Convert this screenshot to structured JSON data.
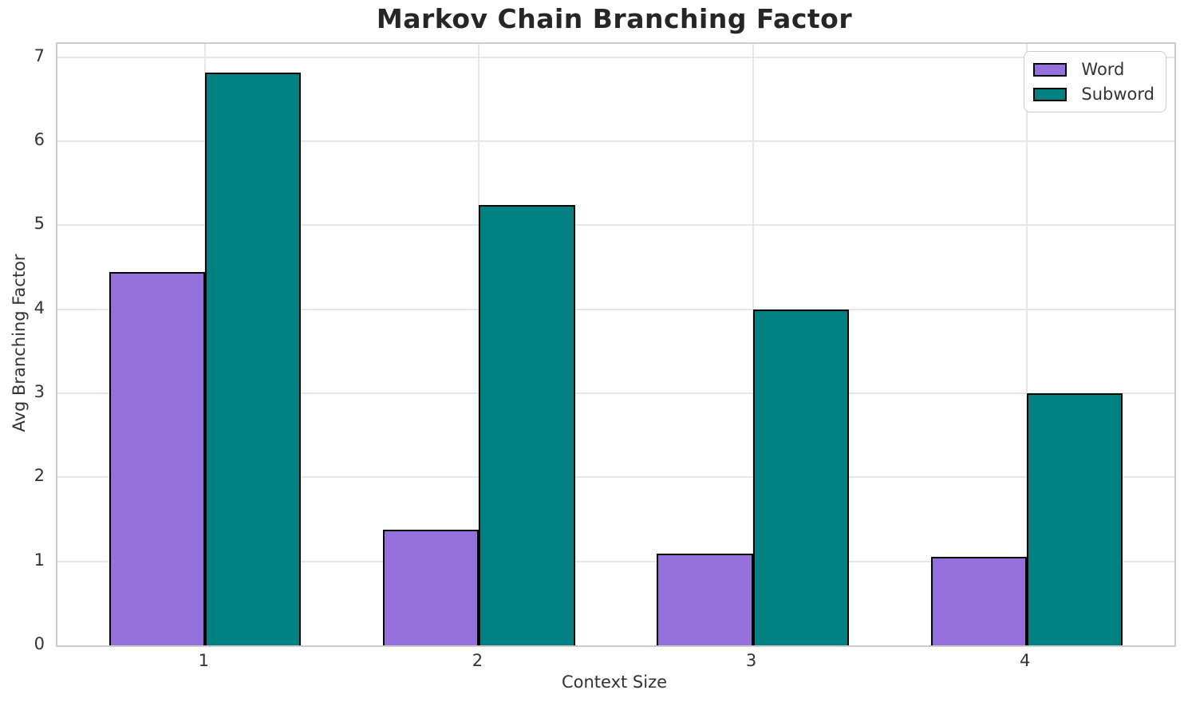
{
  "title": "Markov Chain Branching Factor",
  "chart_data": {
    "type": "bar",
    "title": "Markov Chain Branching Factor",
    "xlabel": "Context Size",
    "ylabel": "Avg Branching Factor",
    "categories": [
      "1",
      "2",
      "3",
      "4"
    ],
    "series": [
      {
        "name": "Word",
        "color": "#9370DB",
        "values": [
          4.44,
          1.38,
          1.09,
          1.05
        ]
      },
      {
        "name": "Subword",
        "color": "#008080",
        "values": [
          6.82,
          5.24,
          4.0,
          3.0
        ]
      }
    ],
    "bar_width": 0.35,
    "xlim": [
      0.46,
      4.54
    ],
    "ylim": [
      0,
      7.16
    ],
    "yticks": [
      0,
      1,
      2,
      3,
      4,
      5,
      6,
      7
    ],
    "grid": true,
    "legend_position": "upper right",
    "colors": {
      "bar_edge": "#000000",
      "grid": "#e7e7e7",
      "spine": "#cccccc",
      "tick_text": "#333333",
      "title_text": "#262626",
      "background": "#ffffff"
    }
  }
}
